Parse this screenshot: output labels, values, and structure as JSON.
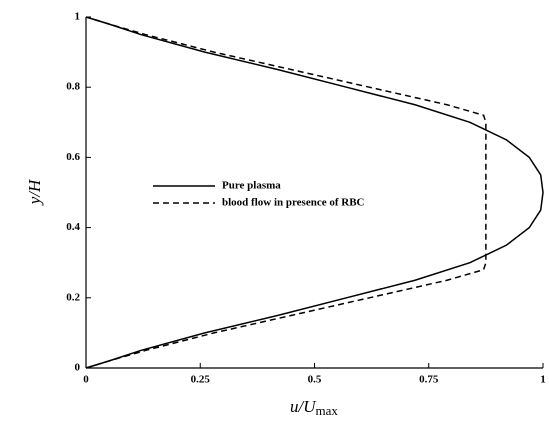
{
  "chart_data": {
    "type": "line",
    "y_label": "y/H",
    "x_label": {
      "main": "u/U",
      "subscript": "max"
    },
    "xlim": [
      0,
      1
    ],
    "xticks": [
      0,
      0.25,
      0.5,
      0.75,
      1
    ],
    "ylim": [
      0,
      1
    ],
    "yticks": [
      0,
      0.2,
      0.4,
      0.6,
      0.8,
      1
    ],
    "grid": false,
    "series": [
      {
        "name": "Pure plasma",
        "color": "#000000",
        "dash": "solid",
        "x": [
          0,
          0.05,
          0.12,
          0.26,
          0.42,
          0.57,
          0.72,
          0.84,
          0.92,
          0.97,
          0.995,
          1,
          0.995,
          0.97,
          0.92,
          0.84,
          0.72,
          0.57,
          0.42,
          0.26,
          0.12,
          0.05,
          0
        ],
        "values": [
          0,
          0.02,
          0.05,
          0.1,
          0.15,
          0.2,
          0.25,
          0.3,
          0.35,
          0.4,
          0.45,
          0.5,
          0.55,
          0.6,
          0.65,
          0.7,
          0.75,
          0.8,
          0.85,
          0.9,
          0.95,
          0.98,
          1
        ]
      },
      {
        "name": "blood flow in presence of RBC",
        "color": "#000000",
        "dash": "dashed",
        "x": [
          0,
          0.05,
          0.13,
          0.28,
          0.45,
          0.62,
          0.79,
          0.87,
          0.875,
          0.875,
          0.875,
          0.87,
          0.79,
          0.62,
          0.45,
          0.28,
          0.13,
          0.05,
          0
        ],
        "values": [
          0,
          0.02,
          0.05,
          0.1,
          0.15,
          0.2,
          0.25,
          0.28,
          0.3,
          0.5,
          0.7,
          0.72,
          0.75,
          0.8,
          0.85,
          0.9,
          0.95,
          0.98,
          1
        ]
      }
    ]
  }
}
